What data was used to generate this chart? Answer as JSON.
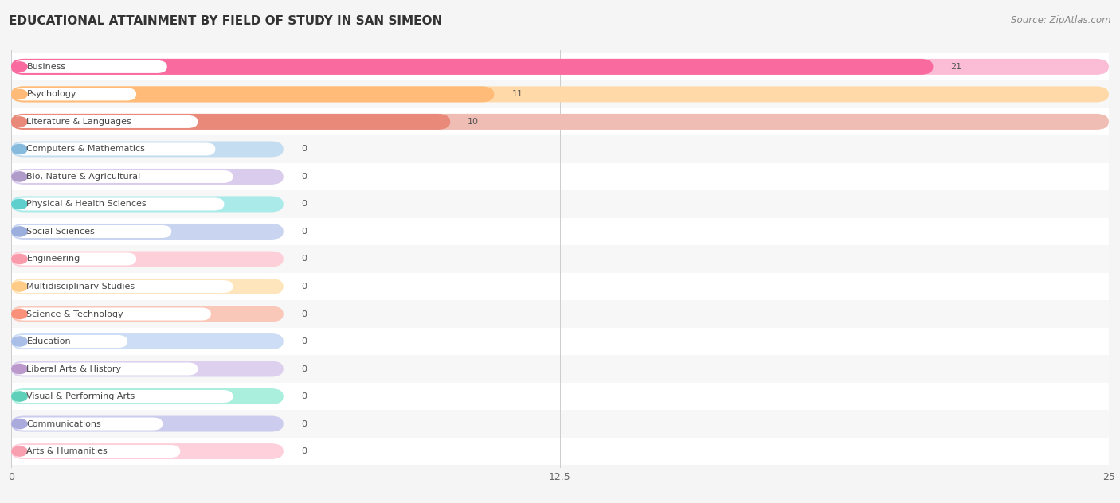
{
  "title": "EDUCATIONAL ATTAINMENT BY FIELD OF STUDY IN SAN SIMEON",
  "source": "Source: ZipAtlas.com",
  "categories": [
    "Business",
    "Psychology",
    "Literature & Languages",
    "Computers & Mathematics",
    "Bio, Nature & Agricultural",
    "Physical & Health Sciences",
    "Social Sciences",
    "Engineering",
    "Multidisciplinary Studies",
    "Science & Technology",
    "Education",
    "Liberal Arts & History",
    "Visual & Performing Arts",
    "Communications",
    "Arts & Humanities"
  ],
  "values": [
    21,
    11,
    10,
    0,
    0,
    0,
    0,
    0,
    0,
    0,
    0,
    0,
    0,
    0,
    0
  ],
  "bar_colors": [
    "#F96B9E",
    "#FFBB77",
    "#E8897A",
    "#87BBDD",
    "#B09CC8",
    "#5ECFCC",
    "#9BAEDD",
    "#F99BAB",
    "#FFCC88",
    "#F8907A",
    "#AABFE8",
    "#BB99CC",
    "#5ECFB8",
    "#AAAADD",
    "#F9A0B0"
  ],
  "bar_bg_colors": [
    "#FBBDD5",
    "#FFD9A8",
    "#F0BDB5",
    "#C5DDF0",
    "#D9CCEC",
    "#AAEAE8",
    "#C8D4F0",
    "#FDD0D9",
    "#FFE5BB",
    "#F9C8B8",
    "#CCDDF5",
    "#DDD0EE",
    "#AAEEDD",
    "#CCCCEE",
    "#FDD0DC"
  ],
  "xlim": [
    0,
    25
  ],
  "xticks": [
    0,
    12.5,
    25
  ],
  "background_color": "#f5f5f5",
  "row_colors": [
    "#ffffff",
    "#f7f7f7"
  ],
  "title_fontsize": 11,
  "source_fontsize": 8.5,
  "label_fontsize": 8,
  "value_fontsize": 8
}
